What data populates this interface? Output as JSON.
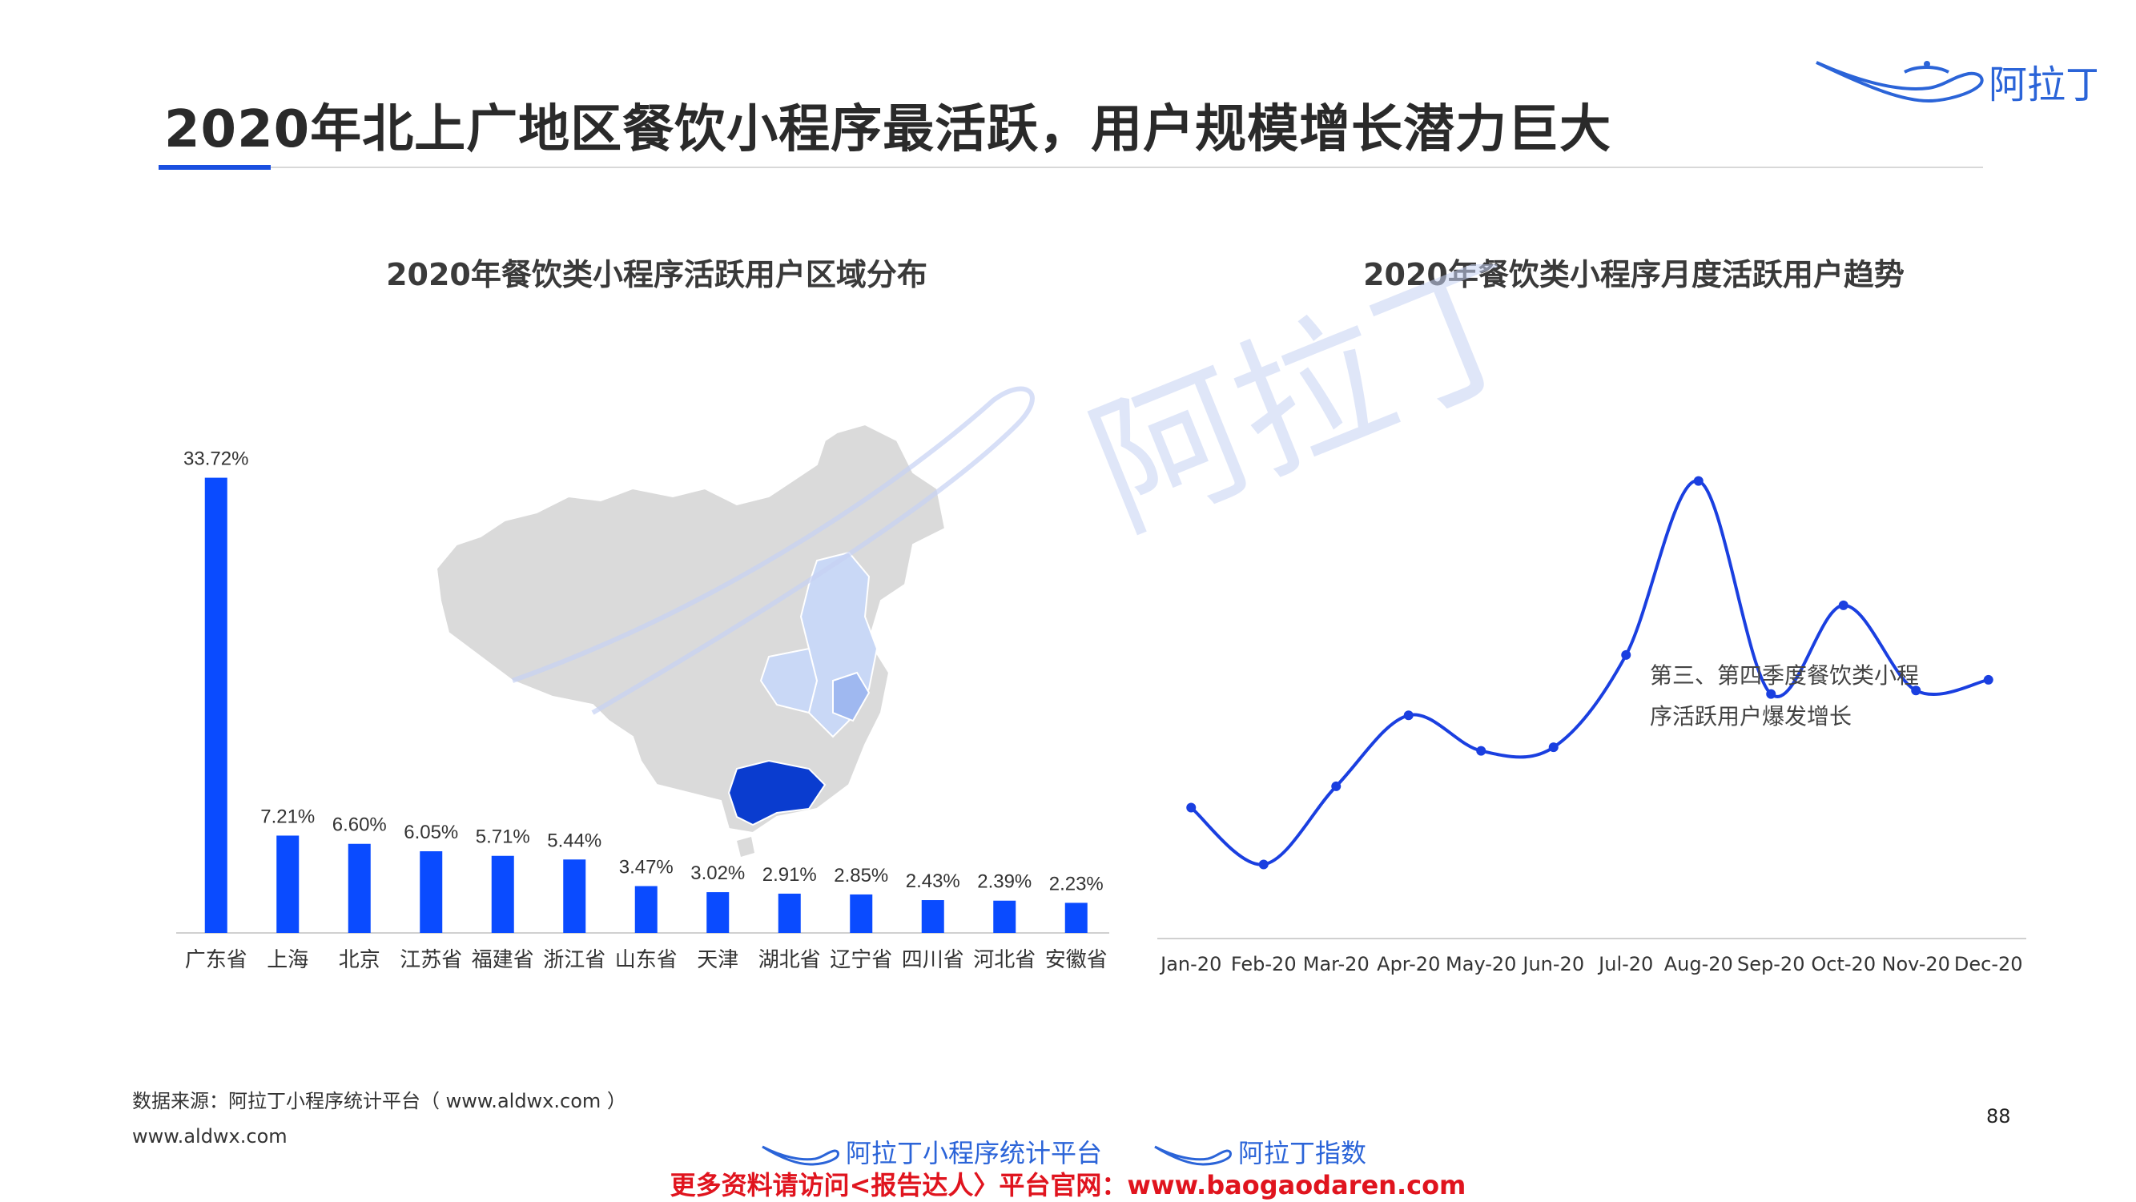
{
  "header": {
    "title": "2020年北上广地区餐饮小程序最活跃，用户规模增长潜力巨大",
    "brand": "阿拉丁"
  },
  "colors": {
    "bar": "#0a4bff",
    "line": "#1a3fe0",
    "accent": "#1a4fe0",
    "map_base": "#dadada",
    "map_light": "#c9d8f6",
    "map_mid": "#9fb8f0",
    "map_dark": "#0a3ccf",
    "promo": "#e0141e"
  },
  "watermark": "阿拉丁",
  "chart_data": [
    {
      "type": "bar",
      "title": "2020年餐饮类小程序活跃用户区域分布",
      "categories": [
        "广东省",
        "上海",
        "北京",
        "江苏省",
        "福建省",
        "浙江省",
        "山东省",
        "天津",
        "湖北省",
        "辽宁省",
        "四川省",
        "河北省",
        "安徽省"
      ],
      "values": [
        33.72,
        7.21,
        6.6,
        6.05,
        5.71,
        5.44,
        3.47,
        3.02,
        2.91,
        2.85,
        2.43,
        2.39,
        2.23
      ],
      "labels": [
        "33.72%",
        "7.21%",
        "6.60%",
        "6.05%",
        "5.71%",
        "5.44%",
        "3.47%",
        "3.02%",
        "2.91%",
        "2.85%",
        "2.43%",
        "2.39%",
        "2.23%"
      ],
      "unit": "%",
      "ylim": [
        0,
        35
      ]
    },
    {
      "type": "line",
      "title": "2020年餐饮类小程序月度活跃用户趋势",
      "categories": [
        "Jan-20",
        "Feb-20",
        "Mar-20",
        "Apr-20",
        "May-20",
        "Jun-20",
        "Jul-20",
        "Aug-20",
        "Sep-20",
        "Oct-20",
        "Nov-20",
        "Dec-20"
      ],
      "values": [
        38,
        22,
        44,
        64,
        54,
        55,
        81,
        130,
        70,
        95,
        71,
        74
      ],
      "ylim": [
        0,
        150
      ],
      "annotation": [
        "第三、第四季度餐饮类小程",
        "序活跃用户爆发增长"
      ]
    }
  ],
  "footer": {
    "source": "数据来源：阿拉丁小程序统计平台（ www.aldwx.com ）",
    "site": "www.aldwx.com",
    "page": "88",
    "logo1": "阿拉丁小程序统计平台",
    "logo2": "阿拉丁指数",
    "promo": "更多资料请访问<报告达人〉平台官网：www.baogaodaren.com"
  }
}
